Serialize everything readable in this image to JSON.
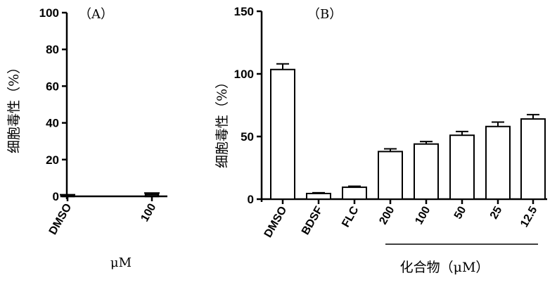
{
  "chart_data": [
    {
      "panel_label": "（A）",
      "type": "bar",
      "categories": [
        "DMSO",
        "100"
      ],
      "values": [
        0.5,
        1.0
      ],
      "errors": [
        0.4,
        0.8
      ],
      "ylabel": "细胞毒性（%）",
      "xlabel": "μM",
      "ylim": [
        0,
        100
      ],
      "yticks": [
        0,
        20,
        40,
        60,
        80,
        100
      ],
      "grid": false,
      "legend": "none"
    },
    {
      "panel_label": "（B）",
      "type": "bar",
      "categories": [
        "DMSO",
        "BDSF",
        "FLC",
        "200",
        "100",
        "50",
        "25",
        "12.5"
      ],
      "values": [
        103.5,
        4.5,
        9.5,
        38,
        44,
        51,
        58,
        64
      ],
      "errors": [
        4.5,
        0.6,
        0.8,
        2.2,
        2.0,
        3.0,
        3.5,
        3.5
      ],
      "ylabel": "细胞毒性（%）",
      "group_label": "化合物（μM）",
      "ylim": [
        0,
        150
      ],
      "yticks": [
        0,
        50,
        100,
        150
      ],
      "grid": false,
      "legend": "none"
    }
  ]
}
